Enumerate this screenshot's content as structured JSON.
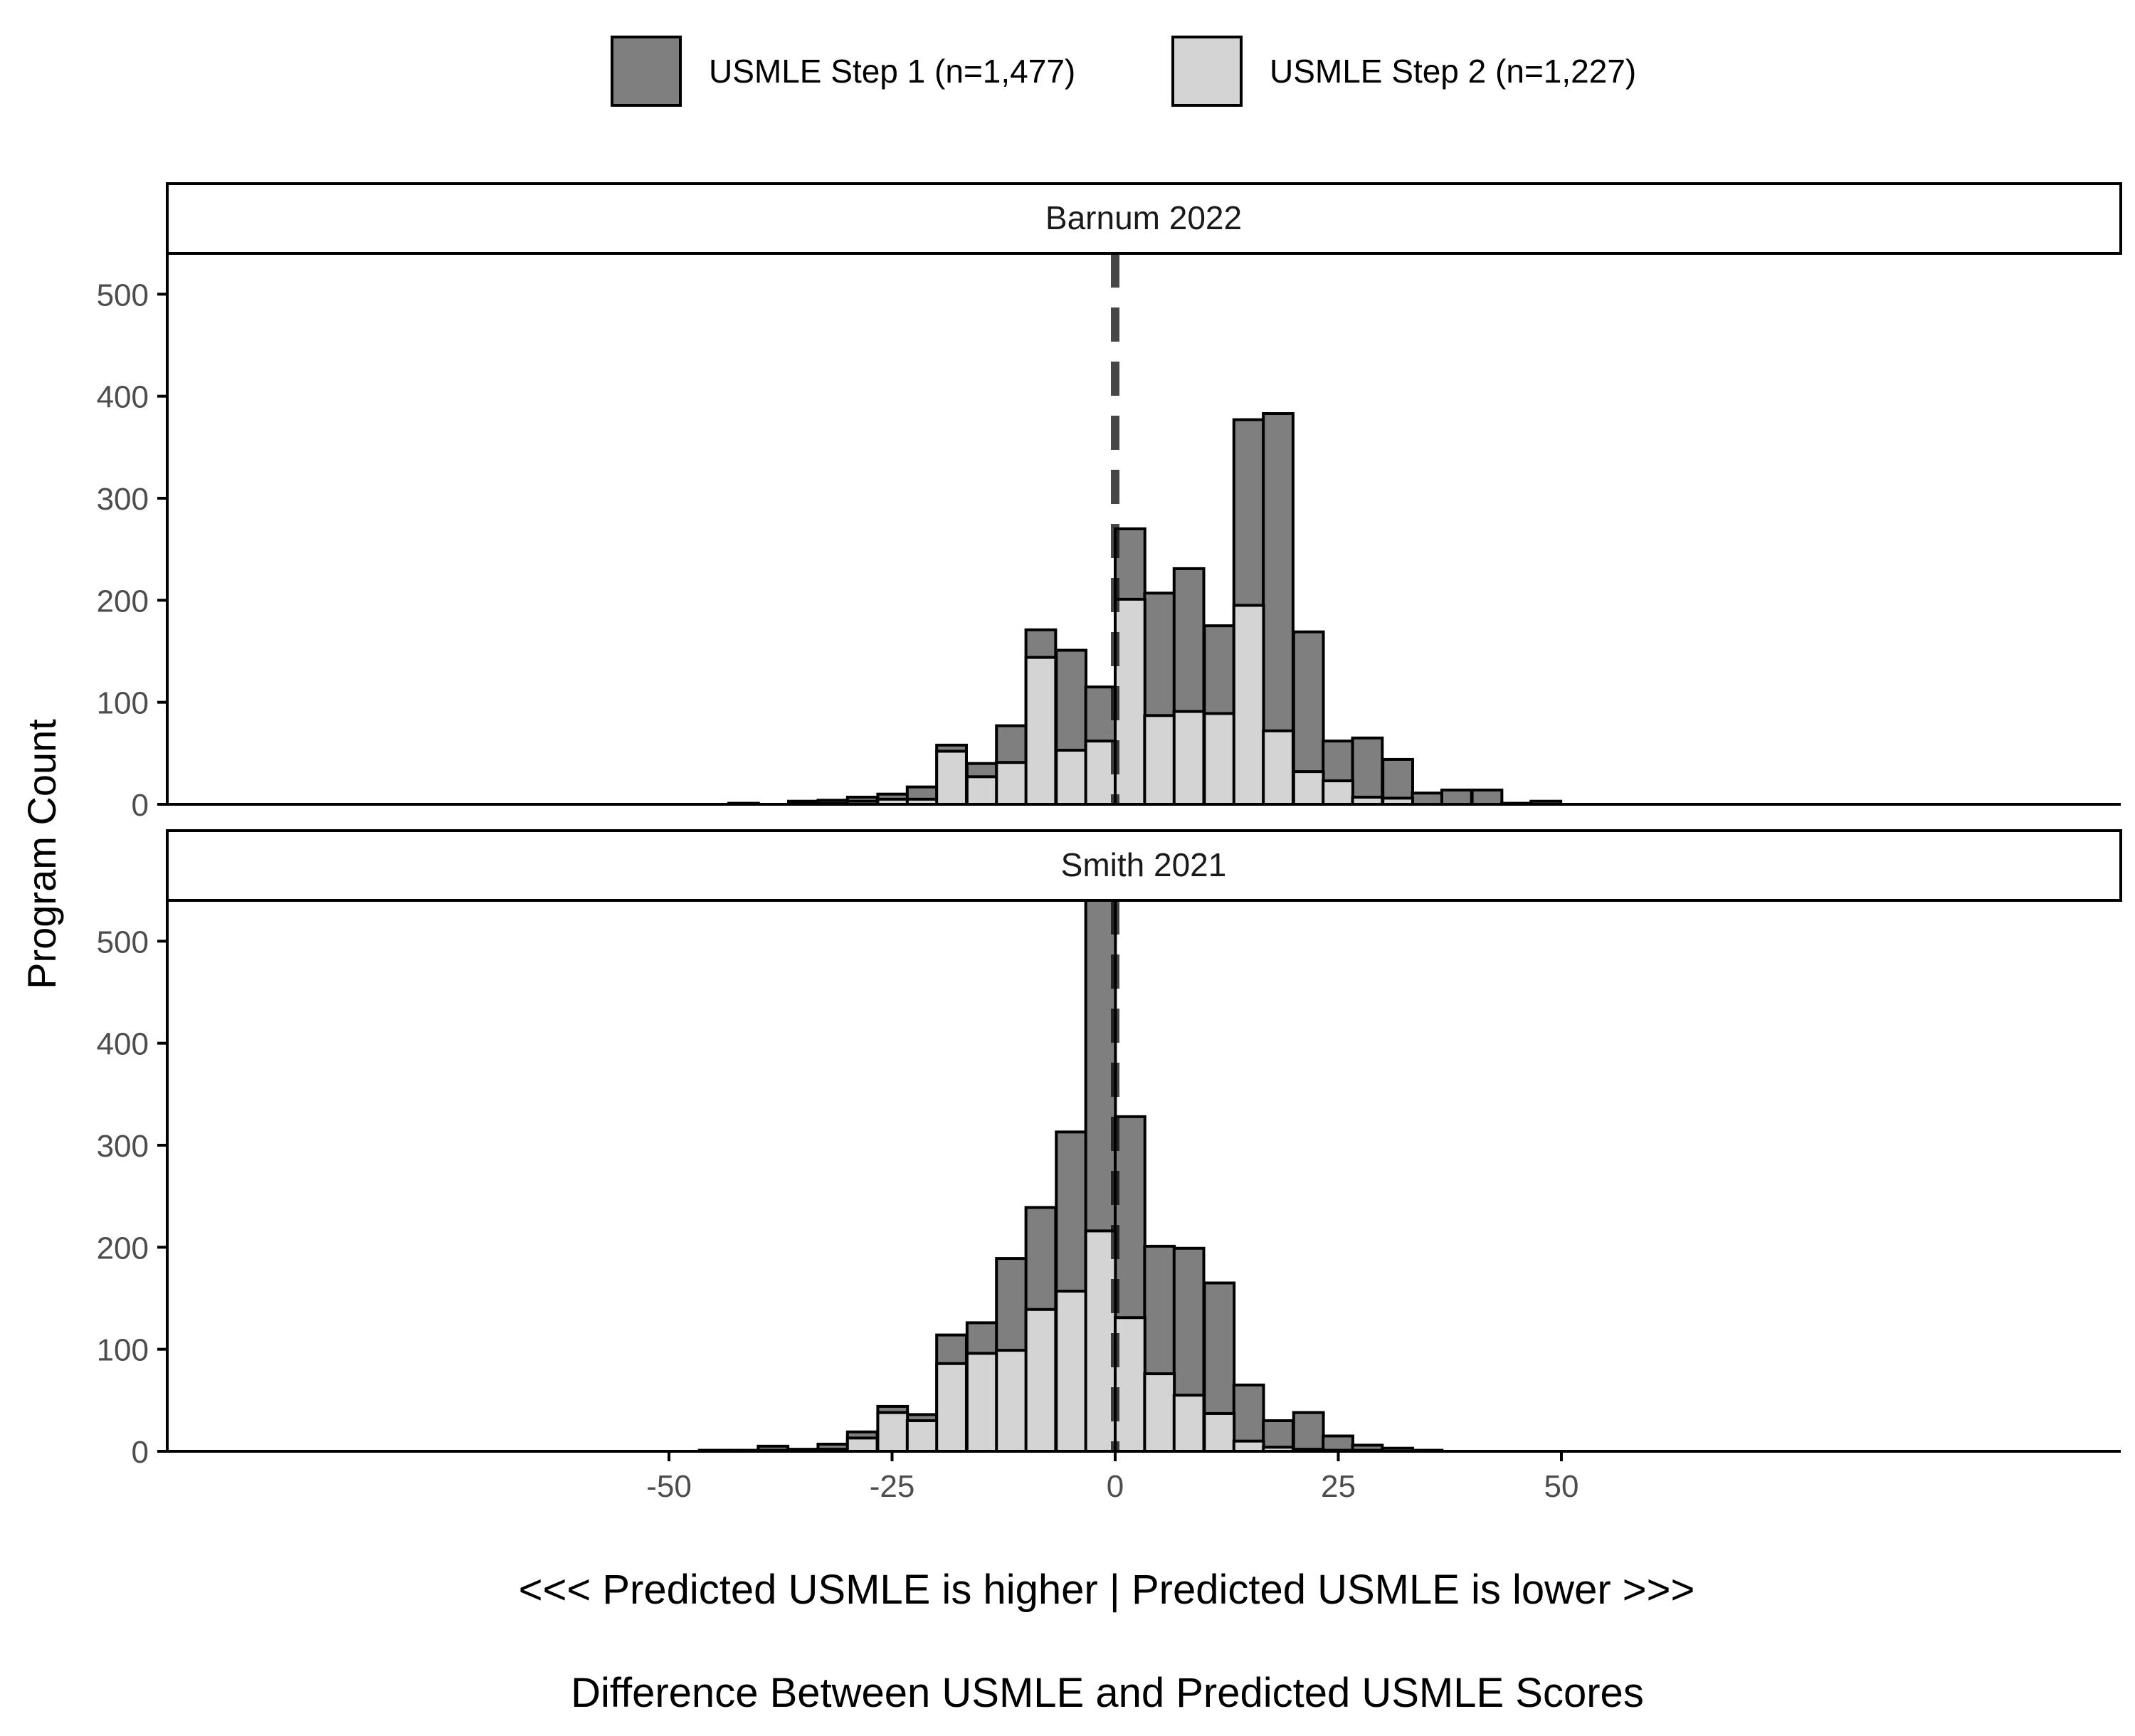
{
  "colors": {
    "step1": "#7f7f7f",
    "step2": "#d4d4d4",
    "outline": "#000000",
    "reference_line": "#000000",
    "tick_label": "#4d4d4d",
    "background": "#ffffff"
  },
  "chart_data": {
    "type": "bar",
    "subtype": "histogram-overlaid-facets",
    "xlabel": "<<< Predicted USMLE is higher | Predicted USMLE is lower >>>",
    "xlabel2": "Difference Between USMLE and Predicted USMLE Scores",
    "ylabel": "Program Count",
    "xlim": [
      -53,
      57
    ],
    "ylim": [
      0,
      540
    ],
    "x_ticks": [
      -50,
      -25,
      0,
      25,
      50
    ],
    "x_tick_labels": [
      "-50",
      "-25",
      "0",
      "25",
      "50"
    ],
    "y_ticks": [
      0,
      100,
      200,
      300,
      400,
      500
    ],
    "y_tick_labels": [
      "0",
      "100",
      "200",
      "300",
      "400",
      "500"
    ],
    "reference_line_x": 0,
    "reference_line_style": "dashed",
    "grid": false,
    "legend": {
      "position": "top",
      "entries": [
        {
          "label": "USMLE Step 1 (n=1,477)",
          "color": "#7f7f7f"
        },
        {
          "label": "USMLE Step 2 (n=1,227)",
          "color": "#d4d4d4"
        }
      ]
    },
    "bin_width": 3.33,
    "bins": [
      -46.6,
      -43.3,
      -40.0,
      -36.6,
      -33.3,
      -30.0,
      -26.6,
      -23.3,
      -20.0,
      -16.6,
      -13.3,
      -10.0,
      -6.6,
      -3.3,
      0.0,
      3.3,
      6.6,
      10.0,
      13.3,
      16.6,
      20.0,
      23.3,
      26.6,
      30.0,
      33.3,
      36.6,
      40.0,
      43.3,
      46.6,
      50.0
    ],
    "facets": [
      {
        "title": "Barnum 2022",
        "series": [
          {
            "name": "USMLE Step 1 (n=1,477)",
            "values": [
              0,
              1,
              0,
              3,
              4,
              7,
              10,
              17,
              58,
              40,
              77,
              171,
              151,
              115,
              270,
              207,
              231,
              175,
              377,
              383,
              169,
              62,
              65,
              44,
              11,
              14,
              14,
              1,
              3,
              0
            ]
          },
          {
            "name": "USMLE Step 2 (n=1,227)",
            "values": [
              0,
              0,
              0,
              1,
              1,
              3,
              5,
              5,
              52,
              27,
              41,
              144,
              53,
              62,
              201,
              87,
              91,
              89,
              195,
              72,
              32,
              23,
              7,
              6,
              0,
              0,
              0,
              0,
              0,
              0
            ]
          }
        ]
      },
      {
        "title": "Smith 2021",
        "series": [
          {
            "name": "USMLE Step 1 (n=1,477)",
            "values": [
              1,
              1,
              5,
              2,
              7,
              19,
              44,
              36,
              114,
              126,
              189,
              239,
              313,
              540,
              328,
              201,
              199,
              165,
              65,
              30,
              38,
              15,
              6,
              3,
              1,
              0,
              0,
              0,
              0,
              0
            ]
          },
          {
            "name": "USMLE Step 2 (n=1,227)",
            "values": [
              0,
              0,
              1,
              0,
              2,
              13,
              38,
              30,
              86,
              96,
              99,
              139,
              157,
              216,
              131,
              76,
              55,
              37,
              10,
              4,
              2,
              1,
              1,
              0,
              0,
              0,
              0,
              0,
              0,
              0
            ]
          }
        ]
      }
    ]
  }
}
